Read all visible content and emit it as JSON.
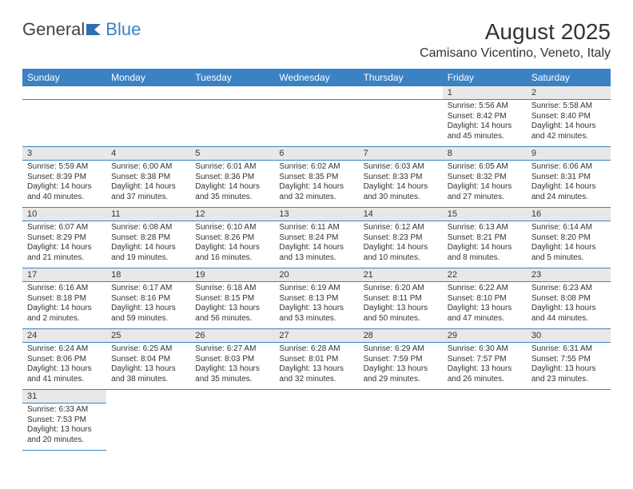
{
  "logo": {
    "part1": "General",
    "part2": "Blue"
  },
  "title": "August 2025",
  "location": "Camisano Vicentino, Veneto, Italy",
  "weekdays": [
    "Sunday",
    "Monday",
    "Tuesday",
    "Wednesday",
    "Thursday",
    "Friday",
    "Saturday"
  ],
  "colors": {
    "header_bg": "#3b82c4",
    "daynum_bg": "#e8e8e8",
    "border": "#3b82c4"
  },
  "weeks": [
    [
      null,
      null,
      null,
      null,
      null,
      {
        "n": "1",
        "sr": "Sunrise: 5:56 AM",
        "ss": "Sunset: 8:42 PM",
        "dl": "Daylight: 14 hours and 45 minutes."
      },
      {
        "n": "2",
        "sr": "Sunrise: 5:58 AM",
        "ss": "Sunset: 8:40 PM",
        "dl": "Daylight: 14 hours and 42 minutes."
      }
    ],
    [
      {
        "n": "3",
        "sr": "Sunrise: 5:59 AM",
        "ss": "Sunset: 8:39 PM",
        "dl": "Daylight: 14 hours and 40 minutes."
      },
      {
        "n": "4",
        "sr": "Sunrise: 6:00 AM",
        "ss": "Sunset: 8:38 PM",
        "dl": "Daylight: 14 hours and 37 minutes."
      },
      {
        "n": "5",
        "sr": "Sunrise: 6:01 AM",
        "ss": "Sunset: 8:36 PM",
        "dl": "Daylight: 14 hours and 35 minutes."
      },
      {
        "n": "6",
        "sr": "Sunrise: 6:02 AM",
        "ss": "Sunset: 8:35 PM",
        "dl": "Daylight: 14 hours and 32 minutes."
      },
      {
        "n": "7",
        "sr": "Sunrise: 6:03 AM",
        "ss": "Sunset: 8:33 PM",
        "dl": "Daylight: 14 hours and 30 minutes."
      },
      {
        "n": "8",
        "sr": "Sunrise: 6:05 AM",
        "ss": "Sunset: 8:32 PM",
        "dl": "Daylight: 14 hours and 27 minutes."
      },
      {
        "n": "9",
        "sr": "Sunrise: 6:06 AM",
        "ss": "Sunset: 8:31 PM",
        "dl": "Daylight: 14 hours and 24 minutes."
      }
    ],
    [
      {
        "n": "10",
        "sr": "Sunrise: 6:07 AM",
        "ss": "Sunset: 8:29 PM",
        "dl": "Daylight: 14 hours and 21 minutes."
      },
      {
        "n": "11",
        "sr": "Sunrise: 6:08 AM",
        "ss": "Sunset: 8:28 PM",
        "dl": "Daylight: 14 hours and 19 minutes."
      },
      {
        "n": "12",
        "sr": "Sunrise: 6:10 AM",
        "ss": "Sunset: 8:26 PM",
        "dl": "Daylight: 14 hours and 16 minutes."
      },
      {
        "n": "13",
        "sr": "Sunrise: 6:11 AM",
        "ss": "Sunset: 8:24 PM",
        "dl": "Daylight: 14 hours and 13 minutes."
      },
      {
        "n": "14",
        "sr": "Sunrise: 6:12 AM",
        "ss": "Sunset: 8:23 PM",
        "dl": "Daylight: 14 hours and 10 minutes."
      },
      {
        "n": "15",
        "sr": "Sunrise: 6:13 AM",
        "ss": "Sunset: 8:21 PM",
        "dl": "Daylight: 14 hours and 8 minutes."
      },
      {
        "n": "16",
        "sr": "Sunrise: 6:14 AM",
        "ss": "Sunset: 8:20 PM",
        "dl": "Daylight: 14 hours and 5 minutes."
      }
    ],
    [
      {
        "n": "17",
        "sr": "Sunrise: 6:16 AM",
        "ss": "Sunset: 8:18 PM",
        "dl": "Daylight: 14 hours and 2 minutes."
      },
      {
        "n": "18",
        "sr": "Sunrise: 6:17 AM",
        "ss": "Sunset: 8:16 PM",
        "dl": "Daylight: 13 hours and 59 minutes."
      },
      {
        "n": "19",
        "sr": "Sunrise: 6:18 AM",
        "ss": "Sunset: 8:15 PM",
        "dl": "Daylight: 13 hours and 56 minutes."
      },
      {
        "n": "20",
        "sr": "Sunrise: 6:19 AM",
        "ss": "Sunset: 8:13 PM",
        "dl": "Daylight: 13 hours and 53 minutes."
      },
      {
        "n": "21",
        "sr": "Sunrise: 6:20 AM",
        "ss": "Sunset: 8:11 PM",
        "dl": "Daylight: 13 hours and 50 minutes."
      },
      {
        "n": "22",
        "sr": "Sunrise: 6:22 AM",
        "ss": "Sunset: 8:10 PM",
        "dl": "Daylight: 13 hours and 47 minutes."
      },
      {
        "n": "23",
        "sr": "Sunrise: 6:23 AM",
        "ss": "Sunset: 8:08 PM",
        "dl": "Daylight: 13 hours and 44 minutes."
      }
    ],
    [
      {
        "n": "24",
        "sr": "Sunrise: 6:24 AM",
        "ss": "Sunset: 8:06 PM",
        "dl": "Daylight: 13 hours and 41 minutes."
      },
      {
        "n": "25",
        "sr": "Sunrise: 6:25 AM",
        "ss": "Sunset: 8:04 PM",
        "dl": "Daylight: 13 hours and 38 minutes."
      },
      {
        "n": "26",
        "sr": "Sunrise: 6:27 AM",
        "ss": "Sunset: 8:03 PM",
        "dl": "Daylight: 13 hours and 35 minutes."
      },
      {
        "n": "27",
        "sr": "Sunrise: 6:28 AM",
        "ss": "Sunset: 8:01 PM",
        "dl": "Daylight: 13 hours and 32 minutes."
      },
      {
        "n": "28",
        "sr": "Sunrise: 6:29 AM",
        "ss": "Sunset: 7:59 PM",
        "dl": "Daylight: 13 hours and 29 minutes."
      },
      {
        "n": "29",
        "sr": "Sunrise: 6:30 AM",
        "ss": "Sunset: 7:57 PM",
        "dl": "Daylight: 13 hours and 26 minutes."
      },
      {
        "n": "30",
        "sr": "Sunrise: 6:31 AM",
        "ss": "Sunset: 7:55 PM",
        "dl": "Daylight: 13 hours and 23 minutes."
      }
    ],
    [
      {
        "n": "31",
        "sr": "Sunrise: 6:33 AM",
        "ss": "Sunset: 7:53 PM",
        "dl": "Daylight: 13 hours and 20 minutes."
      },
      null,
      null,
      null,
      null,
      null,
      null
    ]
  ]
}
